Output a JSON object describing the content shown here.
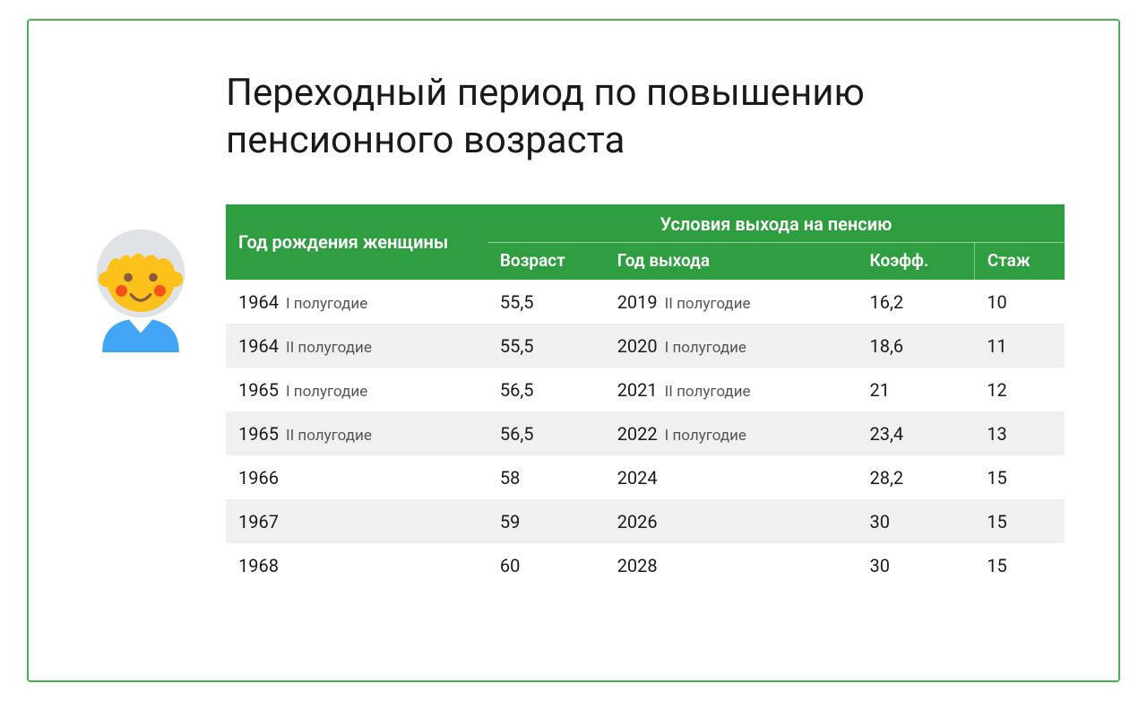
{
  "title": "Переходный период по повышению пенсионного возраста",
  "header": {
    "birth": "Год рождения женщины",
    "conditions": "Условия выхода на пенсию",
    "age": "Возраст",
    "exit_year": "Год выхода",
    "coef": "Коэфф.",
    "stage": "Стаж"
  },
  "rows": [
    {
      "year": "1964",
      "half": "I полугодие",
      "age": "55,5",
      "exit_year": "2019",
      "exit_half": "II полугодие",
      "coef": "16,2",
      "stage": "10"
    },
    {
      "year": "1964",
      "half": "II полугодие",
      "age": "55,5",
      "exit_year": "2020",
      "exit_half": "I полугодие",
      "coef": "18,6",
      "stage": "11"
    },
    {
      "year": "1965",
      "half": "I полугодие",
      "age": "56,5",
      "exit_year": "2021",
      "exit_half": "II полугодие",
      "coef": "21",
      "stage": "12"
    },
    {
      "year": "1965",
      "half": "II полугодие",
      "age": "56,5",
      "exit_year": "2022",
      "exit_half": "I полугодие",
      "coef": "23,4",
      "stage": "13"
    },
    {
      "year": "1966",
      "half": "",
      "age": "58",
      "exit_year": "2024",
      "exit_half": "",
      "coef": "28,2",
      "stage": "15"
    },
    {
      "year": "1967",
      "half": "",
      "age": "59",
      "exit_year": "2026",
      "exit_half": "",
      "coef": "30",
      "stage": "15"
    },
    {
      "year": "1968",
      "half": "",
      "age": "60",
      "exit_year": "2028",
      "exit_half": "",
      "coef": "30",
      "stage": "15"
    }
  ],
  "style": {
    "border_color": "#4caf50",
    "header_bg": "#2e9e41",
    "header_text": "#ffffff",
    "row_alt_bg": "#f0f0f0",
    "text_color": "#1a1a1a",
    "title_fontsize": 42,
    "cell_fontsize": 20,
    "avatar": {
      "face": "#fcc21b",
      "hair": "#e0e3e6",
      "shirt": "#42a5f5",
      "cheek": "#f4511e",
      "eye": "#895a3b"
    }
  }
}
